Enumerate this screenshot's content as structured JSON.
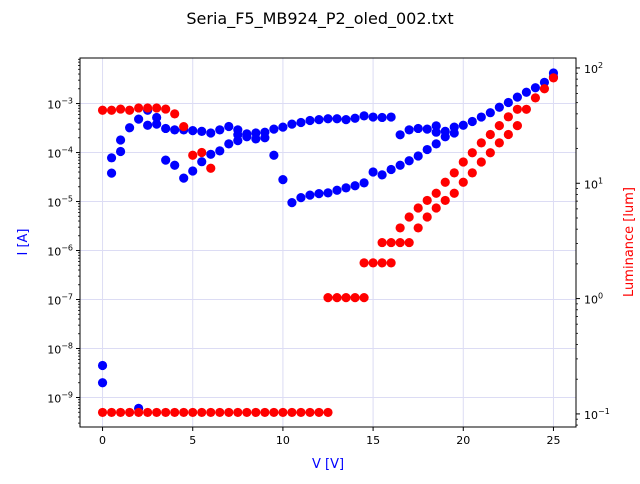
{
  "chart_data": {
    "type": "scatter",
    "title": "Seria_F5_MB924_P2_oled_002.txt",
    "xlabel": "V [V]",
    "ylabel_left": "I [A]",
    "ylabel_right": "Luminance [lum]",
    "x_scale": "linear",
    "y_left_scale": "log",
    "y_right_scale": "log",
    "xlim": [
      -1.25,
      26.25
    ],
    "ylim_left": [
      2.5e-10,
      0.0085
    ],
    "ylim_right": [
      0.077,
      122
    ],
    "x_ticks": [
      0,
      5,
      10,
      15,
      20,
      25
    ],
    "x_tick_labels": [
      "0",
      "5",
      "10",
      "15",
      "20",
      "25"
    ],
    "y_left_ticks": [
      1e-09,
      1e-08,
      1e-07,
      1e-06,
      1e-05,
      0.0001,
      0.001
    ],
    "y_left_tick_labels": [
      "10^-9",
      "10^-8",
      "10^-7",
      "10^-6",
      "10^-5",
      "10^-4",
      "10^-3"
    ],
    "y_right_ticks": [
      0.1,
      1,
      10,
      100
    ],
    "y_right_tick_labels": [
      "10^-1",
      "10^0",
      "10^1",
      "10^2"
    ],
    "grid": true,
    "colors": {
      "current": "#0000ff",
      "luminance": "#ff0000",
      "grid": "#dcdcf4",
      "left_label": "#0000ff",
      "right_label": "#ff0000"
    },
    "series": [
      {
        "axis": "left",
        "color": "#0000ff",
        "points": [
          [
            0,
            4.5e-09
          ],
          [
            0,
            2e-09
          ],
          [
            0.5,
            3.8e-05
          ],
          [
            0.5,
            7.8e-05
          ],
          [
            1,
            0.000105
          ],
          [
            1,
            0.00018
          ],
          [
            1.5,
            0.00032
          ],
          [
            2,
            0.00048
          ],
          [
            2,
            6e-10
          ],
          [
            2.5,
            0.00073
          ],
          [
            2.5,
            0.00036
          ],
          [
            3,
            0.00052
          ],
          [
            3,
            0.00038
          ],
          [
            3.5,
            0.00031
          ],
          [
            3.5,
            7e-05
          ],
          [
            4,
            0.00029
          ],
          [
            4,
            5.5e-05
          ],
          [
            4.5,
            0.00029
          ],
          [
            4.5,
            3e-05
          ],
          [
            5,
            0.00028
          ],
          [
            5,
            4.2e-05
          ],
          [
            5.5,
            0.00027
          ],
          [
            5.5,
            6.5e-05
          ],
          [
            6,
            0.00025
          ],
          [
            6,
            9.2e-05
          ],
          [
            6.5,
            0.00029
          ],
          [
            6.5,
            0.000108
          ],
          [
            7,
            0.00034
          ],
          [
            7,
            0.00015
          ],
          [
            7.5,
            0.00029
          ],
          [
            7.5,
            0.000175
          ],
          [
            7.5,
            0.00023
          ],
          [
            8,
            0.00024
          ],
          [
            8,
            0.00021
          ],
          [
            8.5,
            0.00025
          ],
          [
            8.5,
            0.00019
          ],
          [
            9,
            0.00026
          ],
          [
            9,
            0.0002
          ],
          [
            9.5,
            0.0003
          ],
          [
            9.5,
            8.8e-05
          ],
          [
            10,
            0.00033
          ],
          [
            10,
            2.8e-05
          ],
          [
            10.5,
            0.00038
          ],
          [
            10.5,
            9.5e-06
          ],
          [
            11,
            0.00041
          ],
          [
            11,
            1.2e-05
          ],
          [
            11.5,
            0.00045
          ],
          [
            11.5,
            1.35e-05
          ],
          [
            12,
            0.00047
          ],
          [
            12,
            1.45e-05
          ],
          [
            12.5,
            0.00049
          ],
          [
            12.5,
            1.5e-05
          ],
          [
            13,
            0.00049
          ],
          [
            13,
            1.7e-05
          ],
          [
            13.5,
            0.00047
          ],
          [
            13.5,
            1.9e-05
          ],
          [
            14,
            0.0005
          ],
          [
            14,
            2.1e-05
          ],
          [
            14.5,
            0.00056
          ],
          [
            14.5,
            2.4e-05
          ],
          [
            15,
            0.00053
          ],
          [
            15,
            4e-05
          ],
          [
            15.5,
            0.00052
          ],
          [
            15.5,
            3.5e-05
          ],
          [
            16,
            0.00053
          ],
          [
            16,
            4.5e-05
          ],
          [
            16.5,
            0.00023
          ],
          [
            16.5,
            5.5e-05
          ],
          [
            17,
            0.00029
          ],
          [
            17,
            6.8e-05
          ],
          [
            17.5,
            0.00031
          ],
          [
            17.5,
            8.5e-05
          ],
          [
            18,
            0.0003
          ],
          [
            18,
            0.000115
          ],
          [
            18.5,
            0.00035
          ],
          [
            18.5,
            0.00015
          ],
          [
            18.5,
            0.00026
          ],
          [
            19,
            0.00021
          ],
          [
            19,
            0.00027
          ],
          [
            19.5,
            0.00033
          ],
          [
            19.5,
            0.00025
          ],
          [
            20,
            0.00036
          ],
          [
            20.5,
            0.00043
          ],
          [
            21,
            0.00053
          ],
          [
            21.5,
            0.00065
          ],
          [
            22,
            0.00084
          ],
          [
            22.5,
            0.00105
          ],
          [
            23,
            0.00135
          ],
          [
            23.5,
            0.0017
          ],
          [
            24,
            0.0021
          ],
          [
            24.5,
            0.0027
          ],
          [
            25,
            0.0035
          ],
          [
            25,
            0.0042
          ]
        ]
      },
      {
        "axis": "right",
        "color": "#ff0000",
        "points": [
          [
            0,
            43
          ],
          [
            0.5,
            43
          ],
          [
            1,
            44
          ],
          [
            1.5,
            43
          ],
          [
            2,
            45
          ],
          [
            2.5,
            45
          ],
          [
            3,
            45
          ],
          [
            3.5,
            44
          ],
          [
            4,
            40
          ],
          [
            4.5,
            31
          ],
          [
            5,
            17.5
          ],
          [
            5.5,
            18.5
          ],
          [
            6,
            13.5
          ],
          [
            0,
            0.103
          ],
          [
            0.5,
            0.103
          ],
          [
            1,
            0.103
          ],
          [
            1.5,
            0.103
          ],
          [
            2,
            0.103
          ],
          [
            2.5,
            0.103
          ],
          [
            3,
            0.103
          ],
          [
            3.5,
            0.103
          ],
          [
            4,
            0.103
          ],
          [
            4.5,
            0.103
          ],
          [
            5,
            0.103
          ],
          [
            5.5,
            0.103
          ],
          [
            6,
            0.103
          ],
          [
            6.5,
            0.103
          ],
          [
            7,
            0.103
          ],
          [
            7.5,
            0.103
          ],
          [
            8,
            0.103
          ],
          [
            8.5,
            0.103
          ],
          [
            9,
            0.103
          ],
          [
            9.5,
            0.103
          ],
          [
            10,
            0.103
          ],
          [
            10.5,
            0.103
          ],
          [
            11,
            0.103
          ],
          [
            11.5,
            0.103
          ],
          [
            12,
            0.103
          ],
          [
            12.5,
            0.103
          ],
          [
            12.5,
            1.02
          ],
          [
            13,
            1.02
          ],
          [
            13.5,
            1.02
          ],
          [
            14,
            1.02
          ],
          [
            14.5,
            1.02
          ],
          [
            14.5,
            2.04
          ],
          [
            15,
            2.04
          ],
          [
            15.5,
            2.04
          ],
          [
            16,
            2.04
          ],
          [
            15.5,
            3.06
          ],
          [
            16,
            3.06
          ],
          [
            16.5,
            3.06
          ],
          [
            17,
            3.06
          ],
          [
            16.5,
            4.1
          ],
          [
            17,
            5.1
          ],
          [
            17.5,
            4.1
          ],
          [
            17.5,
            6.1
          ],
          [
            18,
            5.1
          ],
          [
            18,
            7.1
          ],
          [
            18.5,
            6.1
          ],
          [
            18.5,
            8.2
          ],
          [
            19,
            7.1
          ],
          [
            19,
            10.2
          ],
          [
            19.5,
            8.2
          ],
          [
            19.5,
            12.3
          ],
          [
            20,
            10.2
          ],
          [
            20,
            15.3
          ],
          [
            20.5,
            12.3
          ],
          [
            20.5,
            18.4
          ],
          [
            21,
            15.3
          ],
          [
            21,
            22.4
          ],
          [
            21.5,
            18.4
          ],
          [
            21.5,
            26.5
          ],
          [
            22,
            22.4
          ],
          [
            22,
            31.6
          ],
          [
            22.5,
            26.5
          ],
          [
            22.5,
            37.7
          ],
          [
            23,
            31.6
          ],
          [
            23,
            43.8
          ],
          [
            23.5,
            43.8
          ],
          [
            24,
            55
          ],
          [
            24.5,
            66
          ],
          [
            25,
            82
          ]
        ]
      }
    ]
  }
}
